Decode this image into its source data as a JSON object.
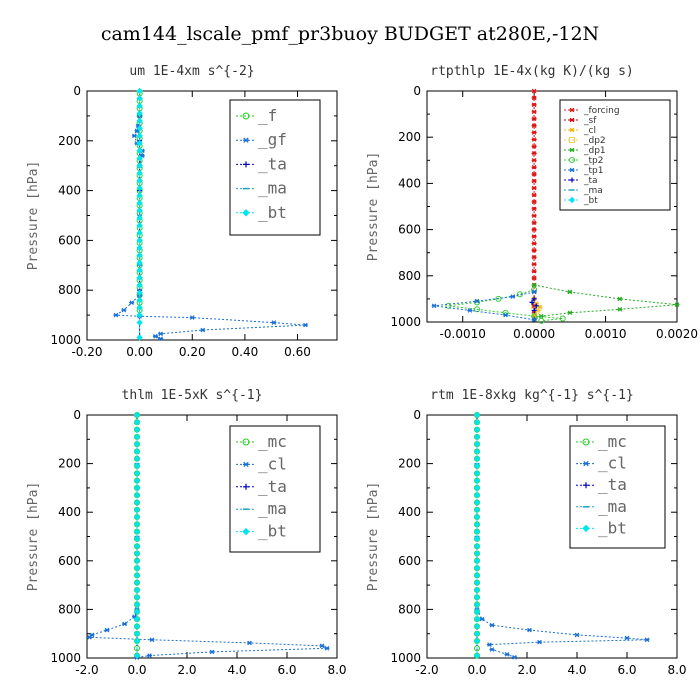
{
  "suptitle": "cam144_lscale_pmf_pr3buoy  BUDGET at280E,-12N",
  "chart_data": [
    {
      "type": "line",
      "title": "um   1E-4xm s^{-2}",
      "ylabel": "Pressure [hPa]",
      "xlim": [
        -0.2,
        0.75
      ],
      "ylim": [
        1000,
        0
      ],
      "xticks": [
        "-0.20",
        "0.00",
        "0.20",
        "0.40",
        "0.60"
      ],
      "xtick_values": [
        -0.2,
        0.0,
        0.2,
        0.4,
        0.6
      ],
      "yticks": [
        "0",
        "200",
        "400",
        "600",
        "800",
        "1000"
      ],
      "legend_style": "big",
      "series": [
        {
          "name": "_f",
          "color": "#22cc22",
          "marker": "circle",
          "x": [
            0,
            0,
            0,
            0,
            0,
            0,
            0,
            0,
            0,
            0,
            0,
            0,
            0,
            0,
            0,
            0,
            0,
            0,
            0,
            0,
            0,
            0,
            0,
            0,
            0,
            0,
            0,
            0,
            0,
            0
          ],
          "y": [
            10,
            40,
            70,
            100,
            130,
            160,
            190,
            220,
            250,
            280,
            310,
            340,
            370,
            400,
            430,
            460,
            490,
            520,
            550,
            580,
            610,
            640,
            670,
            700,
            730,
            760,
            790,
            820,
            850,
            880
          ]
        },
        {
          "name": "_gf",
          "color": "#1a6fd6",
          "marker": "star",
          "x": [
            0,
            -0.005,
            -0.01,
            -0.02,
            -0.01,
            0.01,
            0.01,
            0.0,
            0.0,
            -0.03,
            -0.06,
            -0.09,
            0.0,
            0.2,
            0.51,
            0.63,
            0.24,
            0.08,
            0.06,
            0.08
          ],
          "y": [
            100,
            140,
            160,
            180,
            210,
            240,
            260,
            300,
            820,
            850,
            880,
            900,
            905,
            910,
            930,
            940,
            960,
            975,
            985,
            995
          ]
        },
        {
          "name": "_ta",
          "color": "#0000cc",
          "marker": "plus",
          "x": [
            0,
            0,
            0,
            0,
            0
          ],
          "y": [
            200,
            400,
            600,
            800,
            990
          ]
        },
        {
          "name": "_ma",
          "color": "#1aa3cc",
          "marker": "dash",
          "x": [
            0,
            0,
            0,
            0
          ],
          "y": [
            300,
            500,
            700,
            900
          ]
        },
        {
          "name": "_bt",
          "color": "#00e5ee",
          "marker": "diamond",
          "x": [
            0,
            0,
            0,
            0,
            0,
            0,
            0,
            0,
            0,
            0,
            0,
            0,
            0,
            0,
            0,
            0,
            0,
            0,
            0,
            0,
            0,
            0,
            0,
            0,
            0,
            0,
            0,
            0,
            0,
            0,
            0,
            0,
            0
          ],
          "y": [
            0,
            30,
            60,
            90,
            120,
            150,
            180,
            210,
            240,
            270,
            300,
            330,
            360,
            390,
            420,
            450,
            480,
            510,
            540,
            570,
            600,
            630,
            660,
            690,
            720,
            750,
            780,
            810,
            840,
            870,
            900,
            930,
            990
          ]
        }
      ]
    },
    {
      "type": "line",
      "title": "rtpthlp   1E-4x(kg K)/(kg s)",
      "ylabel": "Pressure [hPa]",
      "xlim": [
        -0.0015,
        0.002
      ],
      "ylim": [
        1000,
        0
      ],
      "xticks": [
        "-0.0010",
        "0.0000",
        "0.0010",
        "0.0020"
      ],
      "xtick_values": [
        -0.001,
        0.0,
        0.001,
        0.002
      ],
      "yticks": [
        "0",
        "200",
        "400",
        "600",
        "800",
        "1000"
      ],
      "legend_style": "small",
      "series": [
        {
          "name": "_forcing",
          "color": "#e01010",
          "marker": "star",
          "x": [
            0,
            0,
            0,
            0,
            0,
            0,
            0,
            0,
            0,
            0,
            0,
            0,
            0,
            0,
            0,
            0,
            0,
            0,
            0,
            0,
            0,
            0,
            0,
            0,
            0,
            0,
            0,
            0,
            0,
            0,
            0,
            0,
            0,
            0
          ],
          "y": [
            0,
            30,
            60,
            90,
            120,
            150,
            180,
            210,
            240,
            270,
            300,
            330,
            360,
            390,
            420,
            450,
            480,
            510,
            540,
            570,
            600,
            630,
            660,
            690,
            720,
            750,
            780,
            810,
            840,
            870,
            900,
            930,
            960,
            990
          ]
        },
        {
          "name": "_sf",
          "color": "#cc0000",
          "marker": "star",
          "x": [],
          "y": []
        },
        {
          "name": "_cl",
          "color": "#f0b400",
          "marker": "star",
          "x": [
            0,
            3e-05,
            8e-05,
            5e-05,
            0
          ],
          "y": [
            900,
            920,
            935,
            950,
            970
          ]
        },
        {
          "name": "_dp2",
          "color": "#f0d050",
          "marker": "square",
          "x": [
            0,
            6e-05,
            3e-05
          ],
          "y": [
            930,
            940,
            955
          ]
        },
        {
          "name": "_dp1",
          "color": "#22aa22",
          "marker": "star",
          "x": [
            0,
            0.0005,
            0.0012,
            0.002,
            0.0012,
            0.0005,
            0.0001,
            0
          ],
          "y": [
            840,
            870,
            900,
            925,
            945,
            960,
            975,
            990
          ]
        },
        {
          "name": "_tp2",
          "color": "#33cc33",
          "marker": "circle",
          "x": [
            0,
            -0.0002,
            -0.0005,
            -0.0008,
            -0.0012,
            -0.0008,
            -0.0004,
            0.0,
            0.0004,
            0.0001
          ],
          "y": [
            860,
            880,
            900,
            915,
            930,
            945,
            960,
            975,
            985,
            995
          ]
        },
        {
          "name": "_tp1",
          "color": "#1a6fd6",
          "marker": "star",
          "x": [
            0,
            -0.0003,
            -0.0008,
            -0.0014,
            -0.0009,
            -0.0004,
            0
          ],
          "y": [
            870,
            890,
            910,
            930,
            950,
            970,
            990
          ]
        },
        {
          "name": "_ta",
          "color": "#0000cc",
          "marker": "plus",
          "x": [
            0,
            -3e-05,
            3e-05,
            0
          ],
          "y": [
            900,
            915,
            930,
            950
          ]
        },
        {
          "name": "_ma",
          "color": "#1aa3cc",
          "marker": "dash",
          "x": [],
          "y": []
        },
        {
          "name": "_bt",
          "color": "#00e5ee",
          "marker": "diamond",
          "x": [],
          "y": []
        }
      ]
    },
    {
      "type": "line",
      "title": "thlm   1E-5xK s^{-1}",
      "ylabel": "Pressure [hPa]",
      "xlim": [
        -2.0,
        8.0
      ],
      "ylim": [
        1000,
        0
      ],
      "xticks": [
        "-2.0",
        "0.0",
        "2.0",
        "4.0",
        "6.0",
        "8.0"
      ],
      "xtick_values": [
        -2.0,
        0.0,
        2.0,
        4.0,
        6.0,
        8.0
      ],
      "yticks": [
        "0",
        "200",
        "400",
        "600",
        "800",
        "1000"
      ],
      "legend_style": "big",
      "series": [
        {
          "name": "_mc",
          "color": "#22cc22",
          "marker": "circle",
          "x": [
            0,
            0,
            0,
            0,
            0,
            0,
            0,
            0,
            0,
            0,
            0,
            0,
            0,
            0,
            0,
            0,
            0,
            0,
            0,
            0,
            0,
            0,
            0,
            0,
            0,
            0,
            0,
            0,
            0,
            0,
            0,
            0,
            0,
            0
          ],
          "y": [
            0,
            30,
            60,
            90,
            120,
            150,
            180,
            210,
            240,
            270,
            300,
            330,
            360,
            390,
            420,
            450,
            480,
            510,
            540,
            570,
            600,
            630,
            660,
            690,
            720,
            750,
            780,
            810,
            840,
            870,
            900,
            930,
            960,
            990
          ]
        },
        {
          "name": "_cl",
          "color": "#1a6fd6",
          "marker": "star",
          "x": [
            0,
            -0.1,
            -0.5,
            -1.2,
            -1.8,
            -1.9,
            0.6,
            4.5,
            7.4,
            7.6,
            3.0,
            0.5,
            0
          ],
          "y": [
            800,
            830,
            860,
            885,
            905,
            915,
            925,
            938,
            950,
            960,
            975,
            990,
            998
          ]
        },
        {
          "name": "_ta",
          "color": "#0000cc",
          "marker": "plus",
          "x": [
            0,
            0,
            0
          ],
          "y": [
            300,
            600,
            990
          ]
        },
        {
          "name": "_ma",
          "color": "#1aa3cc",
          "marker": "dash",
          "x": [
            0,
            0,
            0
          ],
          "y": [
            200,
            500,
            800
          ]
        },
        {
          "name": "_bt",
          "color": "#00e5ee",
          "marker": "diamond",
          "x": [
            0,
            0,
            0,
            0,
            0,
            0,
            0,
            0,
            0,
            0,
            0,
            0,
            0,
            0,
            0,
            0,
            0,
            0,
            0,
            0,
            0,
            0,
            0,
            0,
            0,
            0,
            0,
            0,
            0,
            0,
            0,
            0,
            0
          ],
          "y": [
            0,
            30,
            60,
            90,
            120,
            150,
            180,
            210,
            240,
            270,
            300,
            330,
            360,
            390,
            420,
            450,
            480,
            510,
            540,
            570,
            600,
            630,
            660,
            690,
            720,
            750,
            780,
            810,
            840,
            870,
            900,
            930,
            990
          ]
        }
      ]
    },
    {
      "type": "line",
      "title": "rtm   1E-8xkg kg^{-1} s^{-1}",
      "ylabel": "Pressure [hPa]",
      "xlim": [
        -2.0,
        8.0
      ],
      "ylim": [
        1000,
        0
      ],
      "xticks": [
        "-2.0",
        "0.0",
        "2.0",
        "4.0",
        "6.0",
        "8.0"
      ],
      "xtick_values": [
        -2.0,
        0.0,
        2.0,
        4.0,
        6.0,
        8.0
      ],
      "yticks": [
        "0",
        "200",
        "400",
        "600",
        "800",
        "1000"
      ],
      "legend_style": "big",
      "series": [
        {
          "name": "_mc",
          "color": "#22cc22",
          "marker": "circle",
          "x": [
            0,
            0,
            0,
            0,
            0,
            0,
            0,
            0,
            0,
            0,
            0,
            0,
            0,
            0,
            0,
            0,
            0,
            0,
            0,
            0,
            0,
            0,
            0,
            0,
            0,
            0,
            0,
            0,
            0,
            0,
            0,
            0,
            0,
            0
          ],
          "y": [
            0,
            30,
            60,
            90,
            120,
            150,
            180,
            210,
            240,
            270,
            300,
            330,
            360,
            390,
            420,
            450,
            480,
            510,
            540,
            570,
            600,
            630,
            660,
            690,
            720,
            750,
            780,
            810,
            840,
            870,
            900,
            930,
            960,
            990
          ]
        },
        {
          "name": "_cl",
          "color": "#1a6fd6",
          "marker": "star",
          "x": [
            0,
            0.2,
            0.6,
            2.1,
            4.0,
            6.0,
            6.8,
            2.5,
            0.5,
            0.6,
            1.2,
            1.5
          ],
          "y": [
            800,
            840,
            865,
            885,
            905,
            918,
            925,
            935,
            945,
            965,
            985,
            997
          ]
        },
        {
          "name": "_ta",
          "color": "#0000cc",
          "marker": "plus",
          "x": [
            0,
            0,
            0
          ],
          "y": [
            300,
            600,
            990
          ]
        },
        {
          "name": "_ma",
          "color": "#1aa3cc",
          "marker": "dash",
          "x": [
            0,
            0,
            0
          ],
          "y": [
            200,
            500,
            800
          ]
        },
        {
          "name": "_bt",
          "color": "#00e5ee",
          "marker": "diamond",
          "x": [
            0,
            0,
            0,
            0,
            0,
            0,
            0,
            0,
            0,
            0,
            0,
            0,
            0,
            0,
            0,
            0,
            0,
            0,
            0,
            0,
            0,
            0,
            0,
            0,
            0,
            0,
            0,
            0,
            0,
            0,
            0,
            0,
            0
          ],
          "y": [
            0,
            30,
            60,
            90,
            120,
            150,
            180,
            210,
            240,
            270,
            300,
            330,
            360,
            390,
            420,
            450,
            480,
            510,
            540,
            570,
            600,
            630,
            660,
            690,
            720,
            750,
            780,
            810,
            840,
            870,
            900,
            930,
            990
          ]
        }
      ]
    }
  ]
}
